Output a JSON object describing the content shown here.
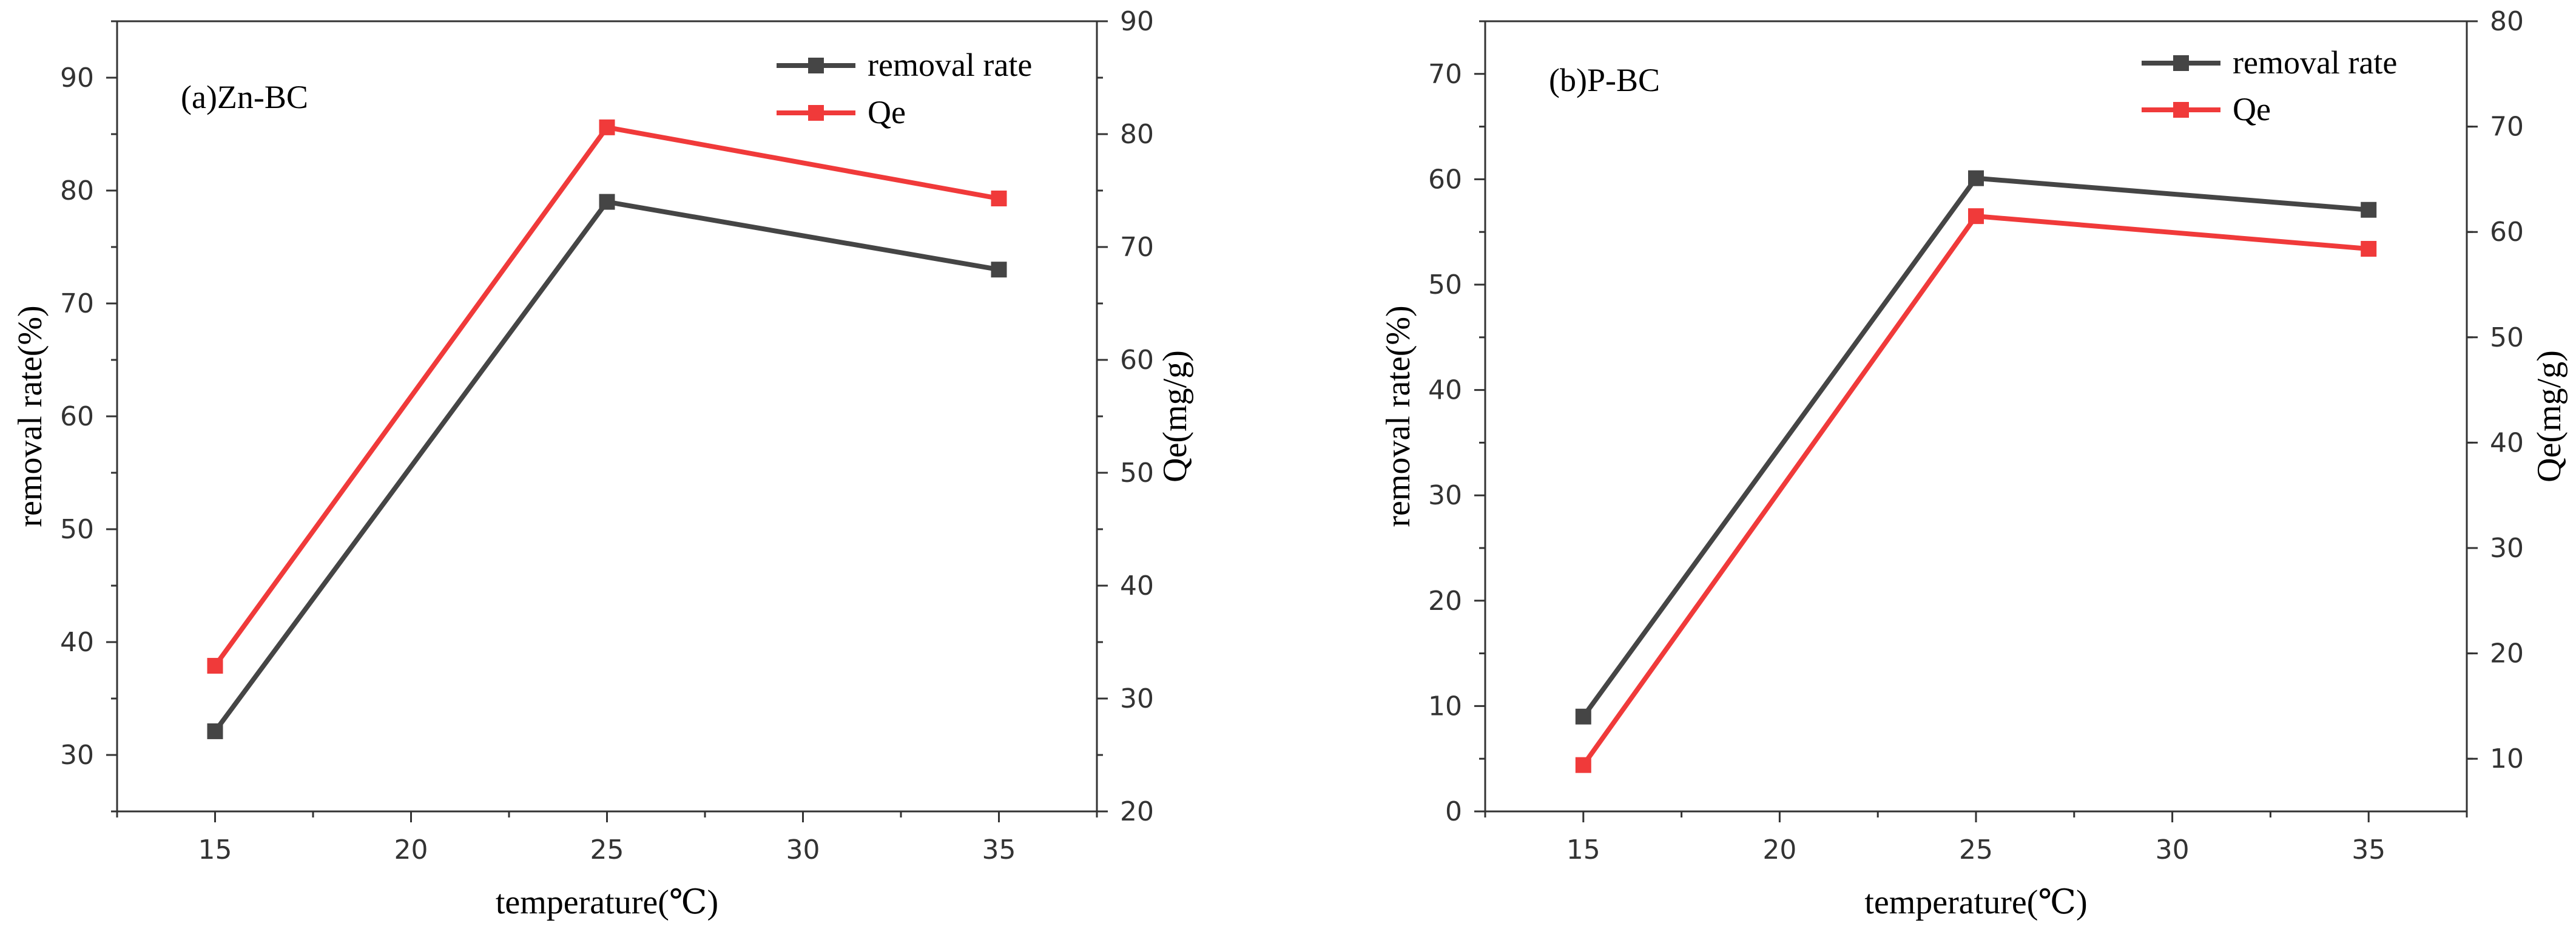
{
  "chart_data": [
    {
      "type": "line",
      "panel_label": "(a)Zn-BC",
      "xlabel": "temperature(℃)",
      "ylabel": "removal rate(%)",
      "y2label": "Qe(mg/g)",
      "xlim": [
        12.5,
        37.5
      ],
      "ylim": [
        25,
        95
      ],
      "y2lim": [
        20,
        90
      ],
      "x_ticks": [
        15,
        20,
        25,
        30,
        35
      ],
      "y_ticks": [
        30,
        40,
        50,
        60,
        70,
        80,
        90
      ],
      "y2_ticks": [
        20,
        30,
        40,
        50,
        60,
        70,
        80,
        90
      ],
      "x": [
        15,
        25,
        35
      ],
      "series": [
        {
          "name": "removal rate",
          "axis": "left",
          "color": "#454545",
          "values": [
            32.1,
            79.0,
            73.0
          ]
        },
        {
          "name": "Qe",
          "axis": "right",
          "color": "#f03a3a",
          "values": [
            32.9,
            80.6,
            74.3
          ]
        }
      ],
      "legend": "top-right"
    },
    {
      "type": "line",
      "panel_label": "(b)P-BC",
      "xlabel": "temperature(℃)",
      "ylabel": "removal rate(%)",
      "y2label": "Qe(mg/g)",
      "xlim": [
        12.5,
        37.5
      ],
      "ylim": [
        0,
        75
      ],
      "y2lim": [
        5,
        80
      ],
      "x_ticks": [
        15,
        20,
        25,
        30,
        35
      ],
      "y_ticks": [
        0,
        10,
        20,
        30,
        40,
        50,
        60,
        70
      ],
      "y2_ticks": [
        10,
        20,
        30,
        40,
        50,
        60,
        70,
        80
      ],
      "x": [
        15,
        25,
        35
      ],
      "series": [
        {
          "name": "removal rate",
          "axis": "left",
          "color": "#454545",
          "values": [
            9.0,
            60.1,
            57.1
          ]
        },
        {
          "name": "Qe",
          "axis": "right",
          "color": "#f03a3a",
          "values": [
            9.4,
            61.5,
            58.4
          ]
        }
      ],
      "legend": "top-right"
    }
  ]
}
